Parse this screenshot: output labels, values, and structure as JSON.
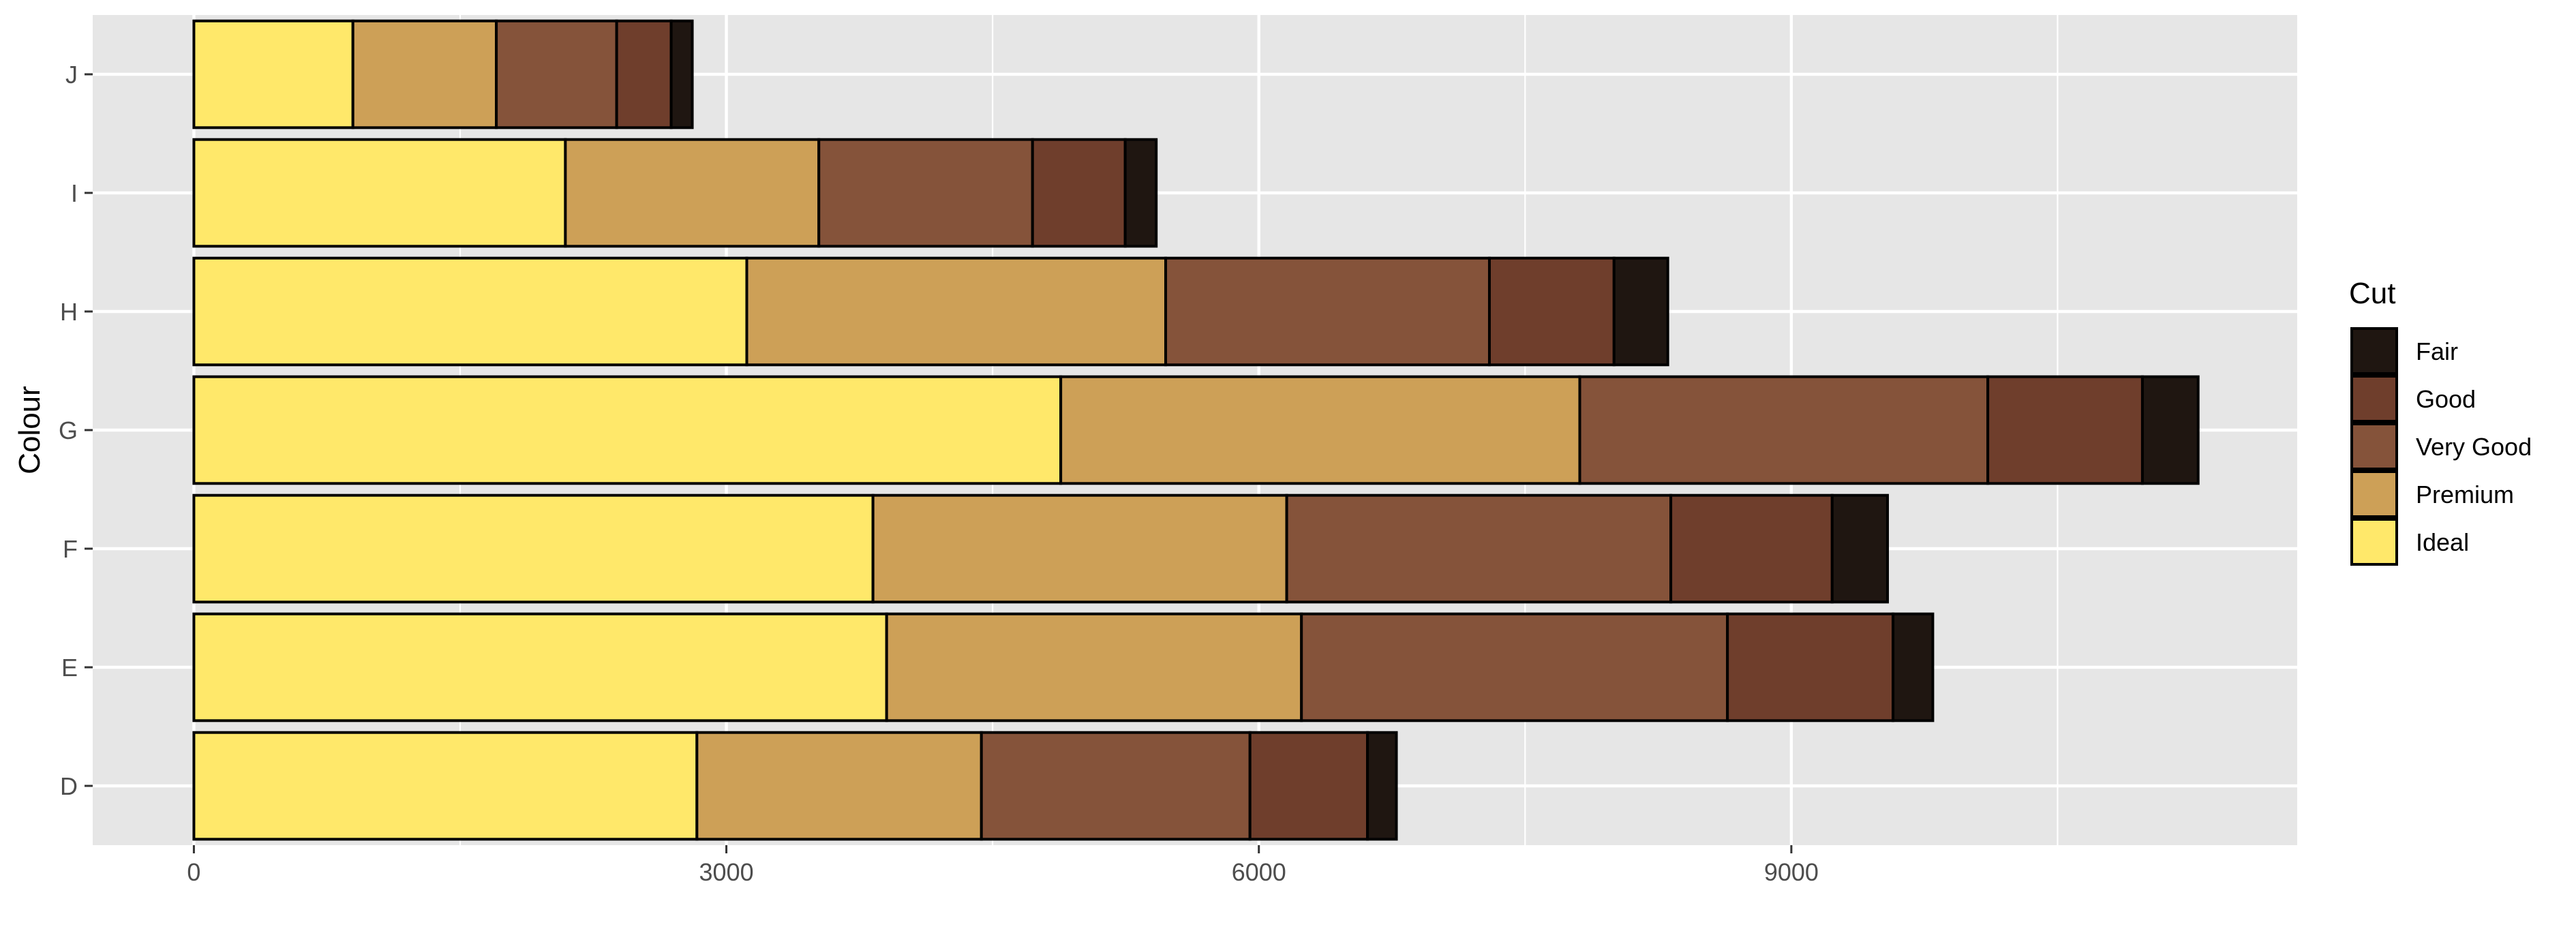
{
  "chart_data": {
    "type": "bar",
    "orientation": "horizontal",
    "stacked": true,
    "ylabel": "Colour",
    "xlabel": "",
    "categories": [
      "D",
      "E",
      "F",
      "G",
      "H",
      "I",
      "J"
    ],
    "xlim": [
      -570,
      11850
    ],
    "xticks": [
      0,
      3000,
      6000,
      9000
    ],
    "xtick_labels": [
      "0",
      "3000",
      "6000",
      "9000"
    ],
    "x_minor_gridlines": [
      1500,
      4500,
      7500,
      10500
    ],
    "grid": true,
    "legend": {
      "title": "Cut",
      "placement": "right",
      "entries": [
        "Fair",
        "Good",
        "Very Good",
        "Premium",
        "Ideal"
      ]
    },
    "series": [
      {
        "name": "Ideal",
        "color": "#FFE86A",
        "values": [
          2834,
          3903,
          3826,
          4884,
          3115,
          2093,
          896
        ]
      },
      {
        "name": "Premium",
        "color": "#CDA057",
        "values": [
          1603,
          2337,
          2331,
          2924,
          2360,
          1428,
          808
        ]
      },
      {
        "name": "Very Good",
        "color": "#85533A",
        "values": [
          1513,
          2400,
          2164,
          2299,
          1824,
          1204,
          678
        ]
      },
      {
        "name": "Good",
        "color": "#6F3E2C",
        "values": [
          662,
          933,
          909,
          871,
          702,
          522,
          307
        ]
      },
      {
        "name": "Fair",
        "color": "#1F1611",
        "values": [
          163,
          224,
          312,
          314,
          303,
          175,
          119
        ]
      }
    ]
  }
}
